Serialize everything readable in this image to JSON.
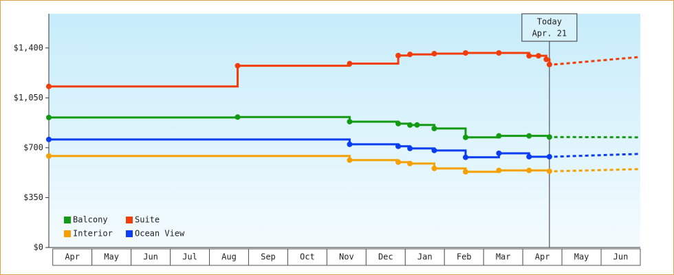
{
  "chart_data": {
    "type": "step-line",
    "categories": [
      "Apr",
      "May",
      "Jun",
      "Jul",
      "Aug",
      "Sep",
      "Oct",
      "Nov",
      "Dec",
      "Jan",
      "Feb",
      "Mar",
      "Apr",
      "May",
      "Jun"
    ],
    "xlim": [
      -0.1,
      15
    ],
    "ylim": [
      0,
      1640
    ],
    "yticks": [
      {
        "value": 0,
        "label": "$0"
      },
      {
        "value": 350,
        "label": "$350"
      },
      {
        "value": 700,
        "label": "$700"
      },
      {
        "value": 1050,
        "label": "$1,050"
      },
      {
        "value": 1400,
        "label": "$1,400"
      }
    ],
    "today": {
      "label": "Today",
      "date": "Apr. 21",
      "x": 12.68
    },
    "forecast_x": [
      12.8,
      15
    ],
    "series": [
      {
        "name": "Balcony",
        "color": "#129a12",
        "x": [
          -0.1,
          4.72,
          7.58,
          8.82,
          9.12,
          9.3,
          9.74,
          10.54,
          11.39,
          12.16,
          12.68
        ],
        "values": [
          912,
          915,
          883,
          869,
          859,
          860,
          835,
          773,
          783,
          783,
          775
        ],
        "forecast": [
          775,
          773
        ]
      },
      {
        "name": "Suite",
        "color": "#f23c0a",
        "x": [
          -0.1,
          4.72,
          7.58,
          8.82,
          9.12,
          9.74,
          10.54,
          11.39,
          12.16,
          12.4,
          12.6,
          12.68
        ],
        "values": [
          1130,
          1275,
          1290,
          1347,
          1355,
          1360,
          1365,
          1365,
          1345,
          1345,
          1320,
          1284
        ],
        "forecast": [
          1284,
          1337
        ]
      },
      {
        "name": "Interior",
        "color": "#f5a000",
        "x": [
          -0.1,
          7.58,
          8.82,
          9.12,
          9.74,
          10.54,
          11.39,
          12.16,
          12.68
        ],
        "values": [
          642,
          613,
          599,
          589,
          555,
          531,
          541,
          541,
          535
        ],
        "forecast": [
          535,
          550
        ]
      },
      {
        "name": "Ocean View",
        "color": "#0a3cf0",
        "x": [
          -0.1,
          7.58,
          8.82,
          9.12,
          9.74,
          10.54,
          11.39,
          12.16,
          12.68
        ],
        "values": [
          758,
          724,
          710,
          695,
          681,
          633,
          661,
          637,
          637
        ],
        "forecast": [
          637,
          657
        ]
      }
    ]
  }
}
